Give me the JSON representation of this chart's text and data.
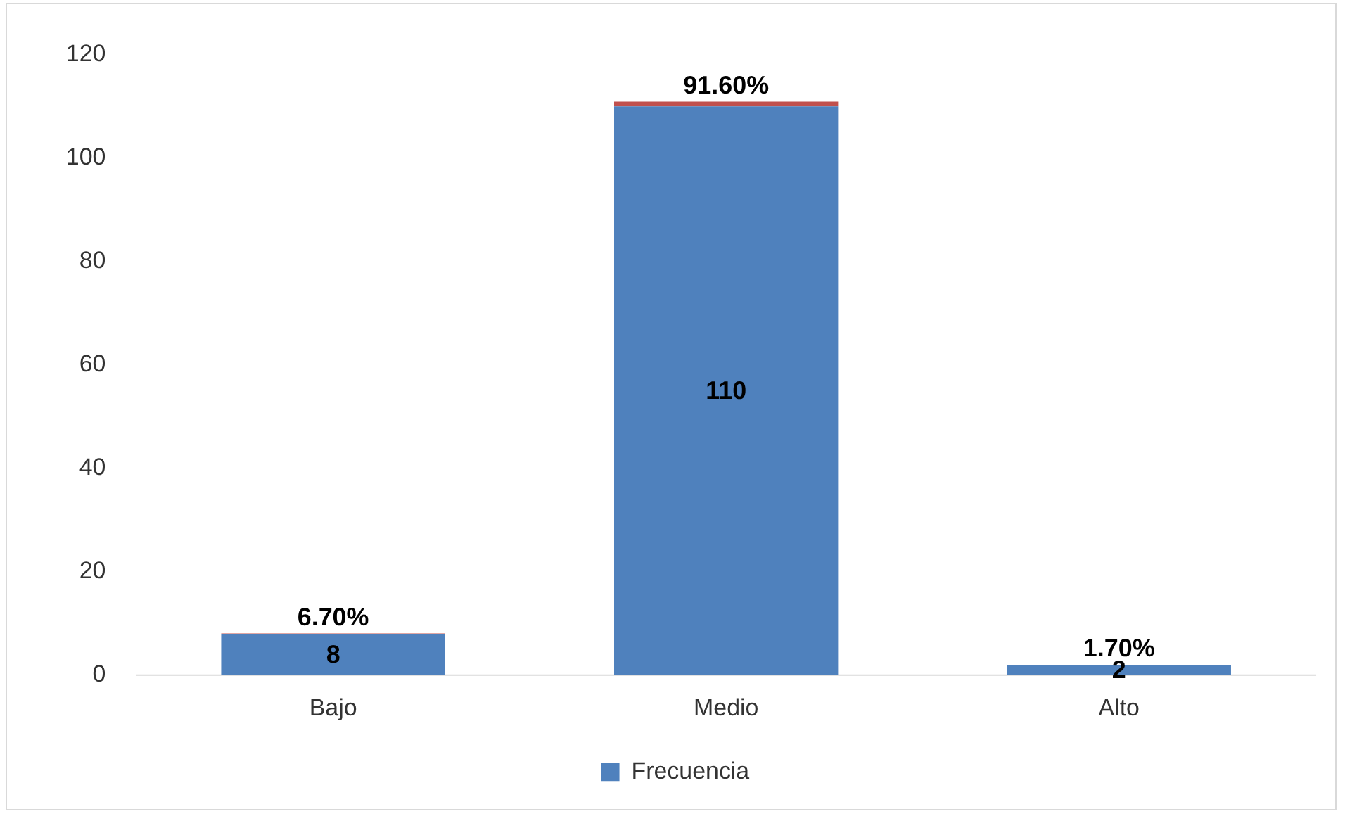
{
  "chart_data": {
    "type": "bar",
    "stacked": true,
    "categories": [
      "Bajo",
      "Medio",
      "Alto"
    ],
    "series": [
      {
        "name": "Frecuencia",
        "color": "#4f81bd",
        "values": [
          8,
          110,
          2
        ],
        "value_labels": [
          "8",
          "110",
          "2"
        ]
      },
      {
        "color": "#c0504d",
        "values": [
          0.067,
          0.916,
          0.017
        ],
        "value_labels": [
          "6.70%",
          "91.60%",
          "1.70%"
        ]
      }
    ],
    "ylim": [
      0,
      120
    ],
    "yticks": [
      0,
      20,
      40,
      60,
      80,
      100,
      120
    ],
    "grid": false,
    "legend": "bottom"
  }
}
